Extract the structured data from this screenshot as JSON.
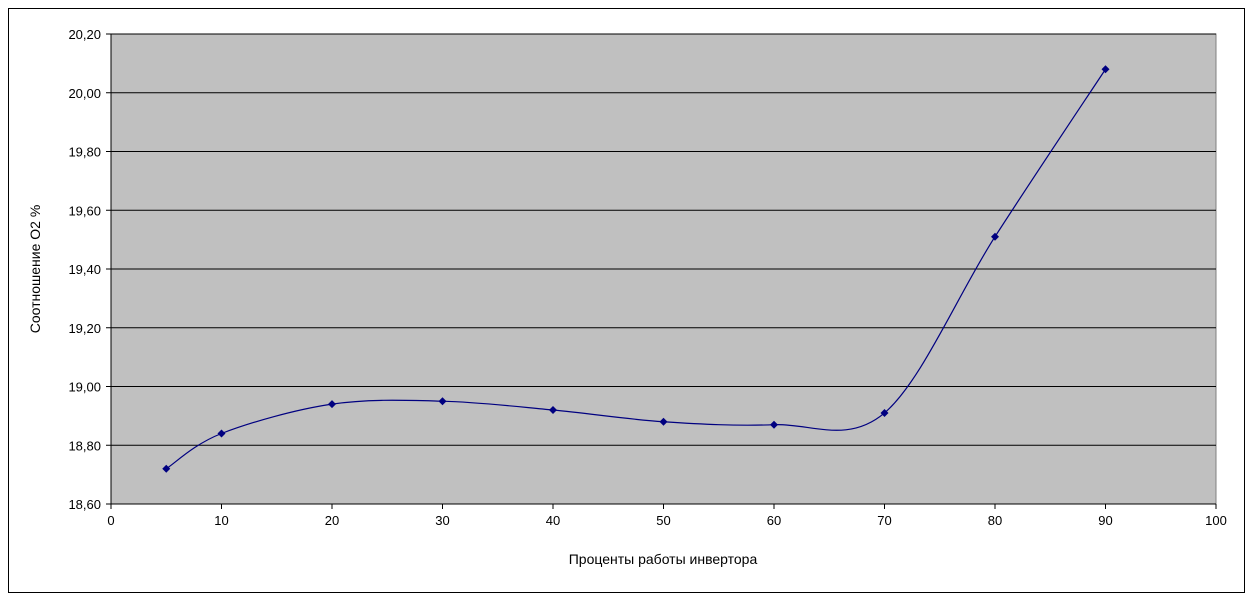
{
  "chart_data": {
    "type": "line",
    "x_label": "Проценты работы инвертора",
    "y_label": "Соотношение О2 %",
    "x": [
      5,
      10,
      20,
      30,
      40,
      50,
      60,
      70,
      80,
      90
    ],
    "values": [
      18.72,
      18.84,
      18.94,
      18.95,
      18.92,
      18.88,
      18.87,
      18.91,
      19.51,
      20.08
    ],
    "color": "#000080",
    "smooth": true,
    "grid": true,
    "xlim": [
      0,
      100
    ],
    "xticks": [
      0,
      10,
      20,
      30,
      40,
      50,
      60,
      70,
      80,
      90,
      100
    ],
    "ylim": [
      18.6,
      20.2
    ],
    "yticks": [
      {
        "value": 18.6,
        "label": "18,60"
      },
      {
        "value": 18.8,
        "label": "18,80"
      },
      {
        "value": 19.0,
        "label": "19,00"
      },
      {
        "value": 19.2,
        "label": "19,20"
      },
      {
        "value": 19.4,
        "label": "19,40"
      },
      {
        "value": 19.6,
        "label": "19,60"
      },
      {
        "value": 19.8,
        "label": "19,80"
      },
      {
        "value": 20.0,
        "label": "20,00"
      },
      {
        "value": 20.2,
        "label": "20,20"
      }
    ]
  }
}
